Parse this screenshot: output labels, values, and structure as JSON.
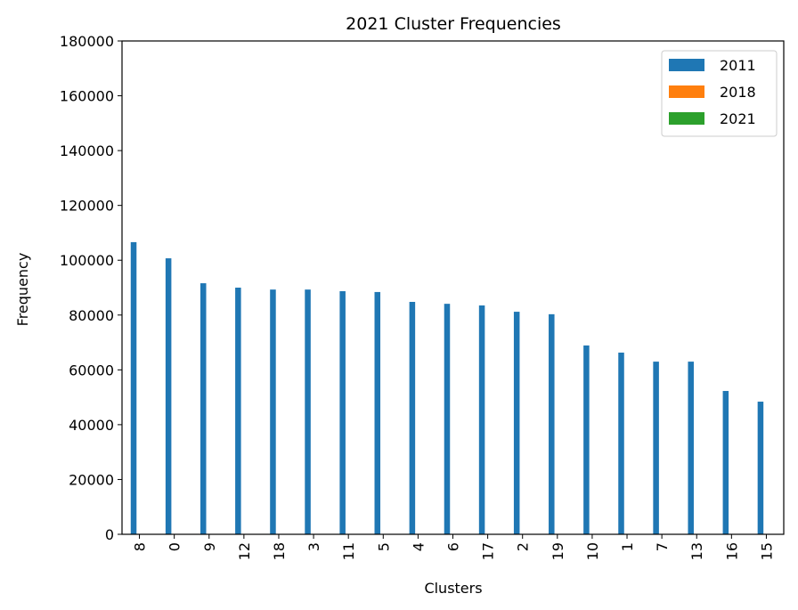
{
  "chart_data": {
    "type": "bar",
    "title": "2021 Cluster Frequencies",
    "xlabel": "Clusters",
    "ylabel": "Frequency",
    "categories": [
      "8",
      "0",
      "9",
      "12",
      "18",
      "3",
      "11",
      "5",
      "4",
      "6",
      "17",
      "2",
      "19",
      "10",
      "1",
      "7",
      "13",
      "16",
      "15"
    ],
    "series": [
      {
        "name": "2011",
        "color": "#1f77b4",
        "values": [
          106600,
          100700,
          91600,
          90000,
          89300,
          89300,
          88700,
          88400,
          84800,
          84100,
          83500,
          81200,
          80300,
          68900,
          66300,
          63000,
          63000,
          52300,
          48400
        ]
      },
      {
        "name": "2018",
        "color": "#ff7f0e",
        "values": [
          null,
          null,
          null,
          null,
          null,
          null,
          null,
          null,
          null,
          null,
          null,
          null,
          null,
          null,
          null,
          null,
          null,
          null,
          null
        ]
      },
      {
        "name": "2021",
        "color": "#2ca02c",
        "values": [
          null,
          null,
          null,
          null,
          null,
          null,
          null,
          null,
          null,
          null,
          null,
          null,
          null,
          null,
          null,
          null,
          null,
          null,
          null
        ]
      }
    ],
    "ylim": [
      0,
      180000
    ],
    "yticks": [
      0,
      20000,
      40000,
      60000,
      80000,
      100000,
      120000,
      140000,
      160000,
      180000
    ],
    "legend": "upper right"
  }
}
